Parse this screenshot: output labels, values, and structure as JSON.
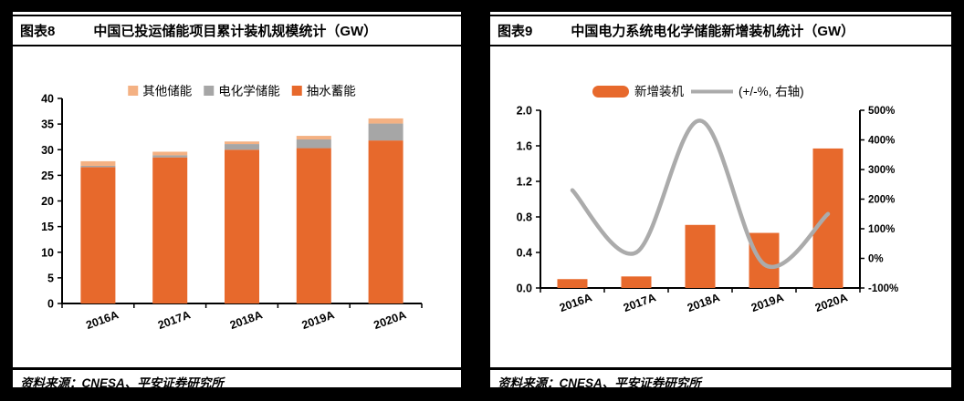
{
  "figure8": {
    "label": "图表8",
    "title": "中国已投运储能项目累计装机规模统计（GW）",
    "source": "资料来源：CNESA、平安证券研究所"
  },
  "figure9": {
    "label": "图表9",
    "title": "中国电力系统电化学储能新增装机统计（GW）",
    "source": "资料来源：CNESA、平安证券研究所"
  },
  "colors": {
    "orange": "#E7692C",
    "peach": "#F4B183",
    "gray": "#A6A6A6",
    "line_gray": "#ABABAB",
    "axis_black": "#000000",
    "panel_white": "#FFFFFF",
    "page_black": "#000000"
  },
  "chart_data": [
    {
      "type": "bar",
      "stacked": true,
      "title": "中国已投运储能项目累计装机规模统计（GW）",
      "categories": [
        "2016A",
        "2017A",
        "2018A",
        "2019A",
        "2020A"
      ],
      "series": [
        {
          "name": "抽水蓄能",
          "color": "#E7692C",
          "values": [
            26.6,
            28.5,
            30.0,
            30.3,
            31.8
          ]
        },
        {
          "name": "电化学储能",
          "color": "#A6A6A6",
          "values": [
            0.25,
            0.4,
            1.1,
            1.7,
            3.3
          ]
        },
        {
          "name": "其他储能",
          "color": "#F4B183",
          "values": [
            0.9,
            0.7,
            0.5,
            0.7,
            1.0
          ]
        }
      ],
      "legend": [
        {
          "label": "其他储能",
          "color": "#F4B183"
        },
        {
          "label": "电化学储能",
          "color": "#A6A6A6"
        },
        {
          "label": "抽水蓄能",
          "color": "#E7692C"
        }
      ],
      "legend_position": "top",
      "grid": false,
      "xlabel": "",
      "ylabel": "",
      "ylim": [
        0,
        40
      ],
      "ytick_step": 5,
      "yticks": [
        "0",
        "5",
        "10",
        "15",
        "20",
        "25",
        "30",
        "35",
        "40"
      ]
    },
    {
      "type": "bar+line",
      "title": "中国电力系统电化学储能新增装机统计（GW）",
      "categories": [
        "2016A",
        "2017A",
        "2018A",
        "2019A",
        "2020A"
      ],
      "bar_series": {
        "name": "新增装机",
        "color": "#E7692C",
        "values": [
          0.1,
          0.13,
          0.71,
          0.62,
          1.57
        ]
      },
      "line_series": {
        "name": "(+/-%, 右轴)",
        "color": "#ABABAB",
        "axis": "right",
        "values_pct": [
          230,
          20,
          465,
          -20,
          150
        ]
      },
      "legend": [
        {
          "label": "新增装机",
          "type": "bar",
          "color": "#E7692C"
        },
        {
          "label": "(+/-%, 右轴)",
          "type": "line",
          "color": "#ABABAB"
        }
      ],
      "legend_position": "top",
      "grid": false,
      "ylim_left": [
        0.0,
        2.0
      ],
      "ytick_step_left": 0.4,
      "yticks_left": [
        "0.0",
        "0.4",
        "0.8",
        "1.2",
        "1.6",
        "2.0"
      ],
      "ylim_right_pct": [
        -100,
        500
      ],
      "ytick_step_right_pct": 100,
      "yticks_right": [
        "-100%",
        "0%",
        "100%",
        "200%",
        "300%",
        "400%",
        "500%"
      ]
    }
  ]
}
